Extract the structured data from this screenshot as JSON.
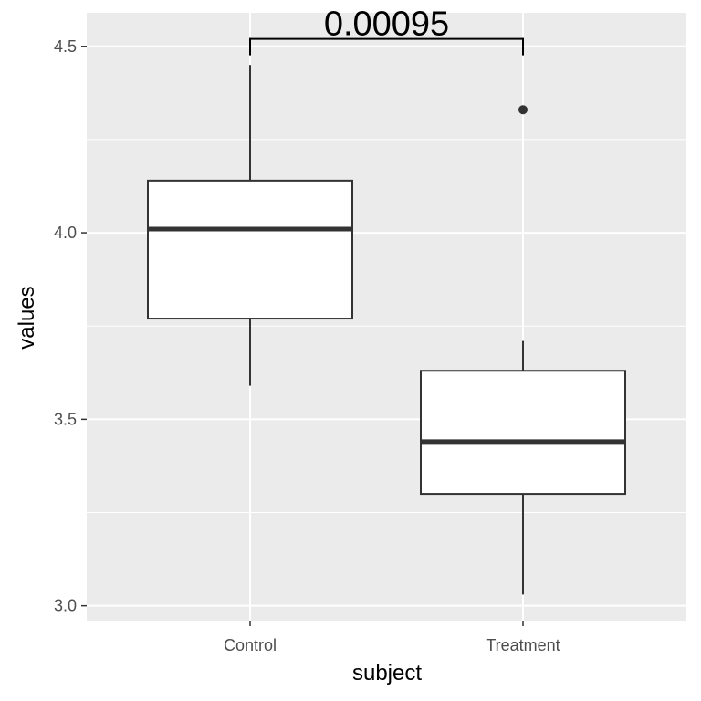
{
  "chart_data": {
    "type": "boxplot",
    "title": "",
    "xlabel": "subject",
    "ylabel": "values",
    "categories": [
      "Control",
      "Treatment"
    ],
    "ylim": [
      2.96,
      4.59
    ],
    "yticks": [
      3.0,
      3.5,
      4.0,
      4.5
    ],
    "ytick_labels": [
      "3.0",
      "3.5",
      "4.0",
      "4.5"
    ],
    "grid": true,
    "panel_background": "#EBEBEB",
    "gridline_color": "#FFFFFF",
    "box_fill": "#FFFFFF",
    "box_stroke": "#333333",
    "boxes": [
      {
        "category": "Control",
        "whisker_low": 3.59,
        "q1": 3.77,
        "median": 4.01,
        "q3": 4.14,
        "whisker_high": 4.45,
        "outliers": []
      },
      {
        "category": "Treatment",
        "whisker_low": 3.03,
        "q1": 3.3,
        "median": 3.44,
        "q3": 3.63,
        "whisker_high": 3.71,
        "outliers": [
          4.33
        ]
      }
    ],
    "annotation": {
      "label": "0.00095",
      "from": "Control",
      "to": "Treatment",
      "y": 4.52
    }
  }
}
